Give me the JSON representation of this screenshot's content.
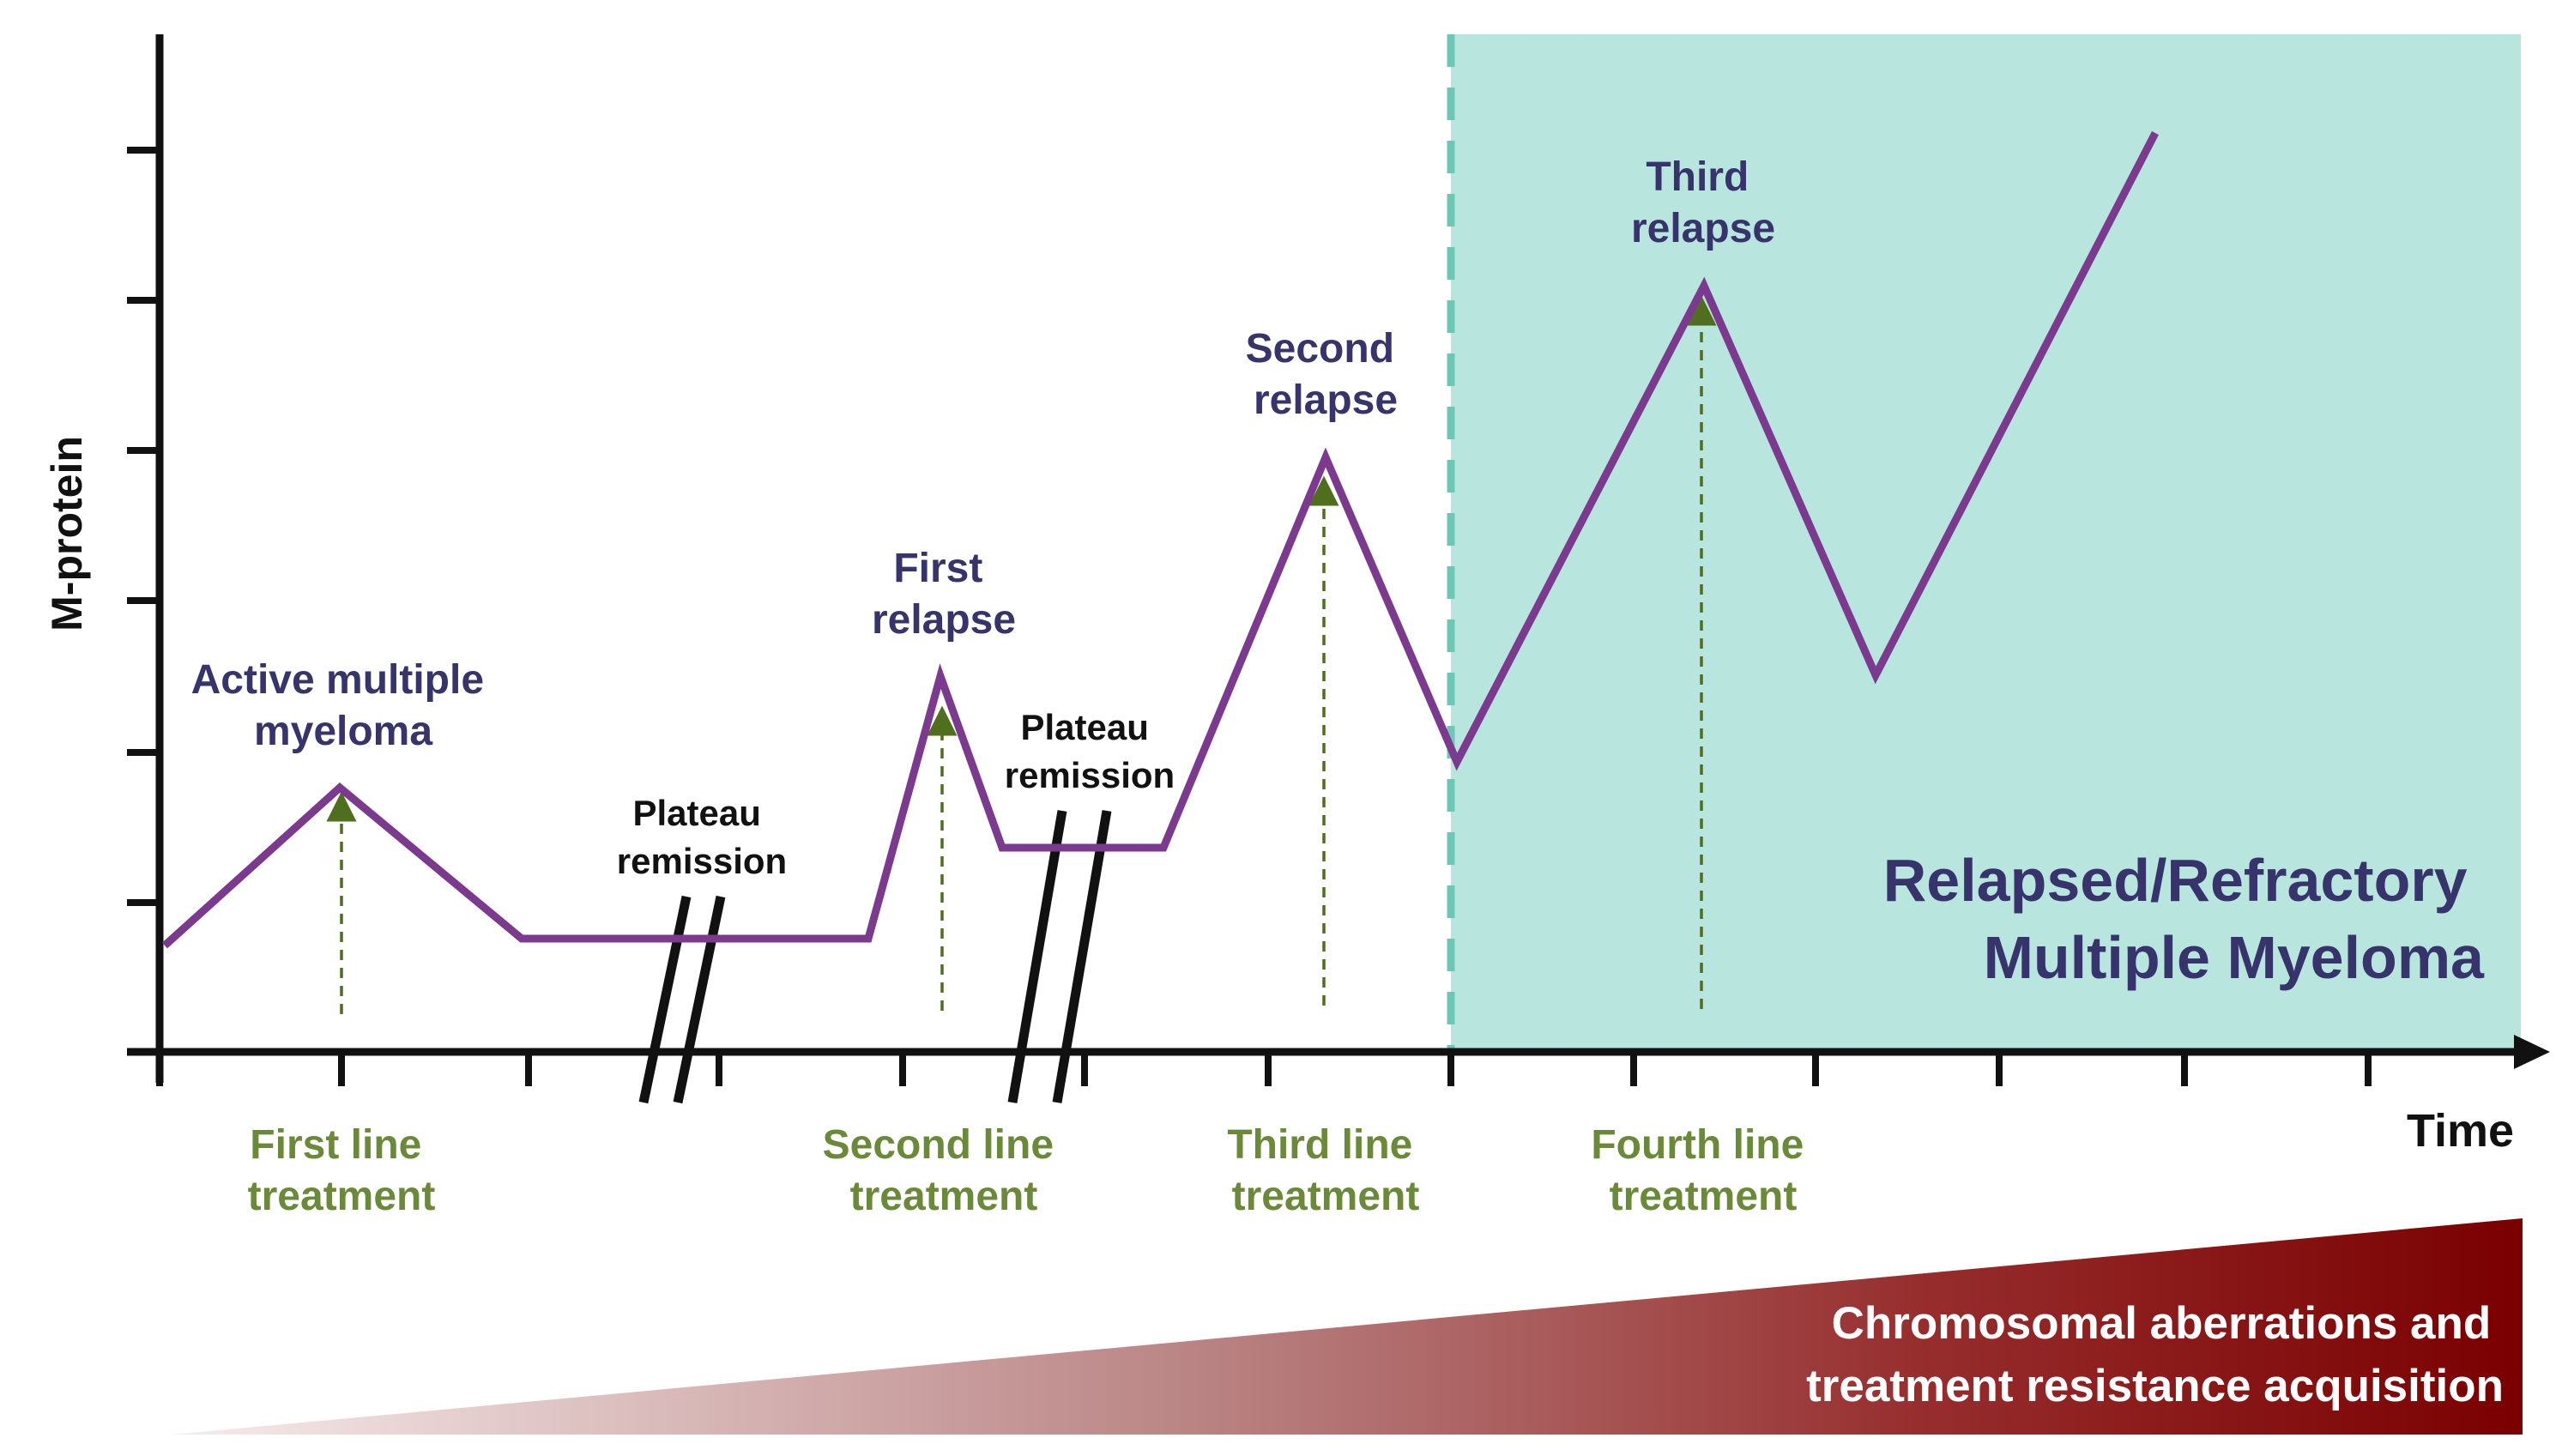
{
  "axes": {
    "y_label": "M-protein",
    "x_label": "Time"
  },
  "curve": {
    "labels": {
      "active": [
        "Active multiple",
        "myeloma"
      ],
      "plateau_1": [
        "Plateau",
        "remission"
      ],
      "plateau_2": [
        "Plateau",
        "remission"
      ],
      "first_relapse": [
        "First",
        "relapse"
      ],
      "second_relapse": [
        "Second",
        "relapse"
      ],
      "third_relapse": [
        "Third",
        "relapse"
      ]
    }
  },
  "treatments": [
    [
      "First line",
      "treatment"
    ],
    [
      "Second line",
      "treatment"
    ],
    [
      "Third line",
      "treatment"
    ],
    [
      "Fourth line",
      "treatment"
    ]
  ],
  "rrmm_region": {
    "label": [
      "Relapsed/Refractory",
      "Multiple Myeloma"
    ]
  },
  "resistance_wedge": {
    "label": [
      "Chromosomal aberrations and",
      "treatment resistance acquisition"
    ]
  },
  "colors": {
    "curve": "#7b3a8e",
    "relapse_text": "#36346b",
    "treatment_text": "#6a8a3a",
    "treatment_arrow": "#4f6f1f",
    "rrmm_fill": "#b9e5df",
    "rrmm_border": "#6cc7b7",
    "wedge_start": "#f3e6e6",
    "wedge_end": "#7a0000",
    "axis": "#111111"
  }
}
